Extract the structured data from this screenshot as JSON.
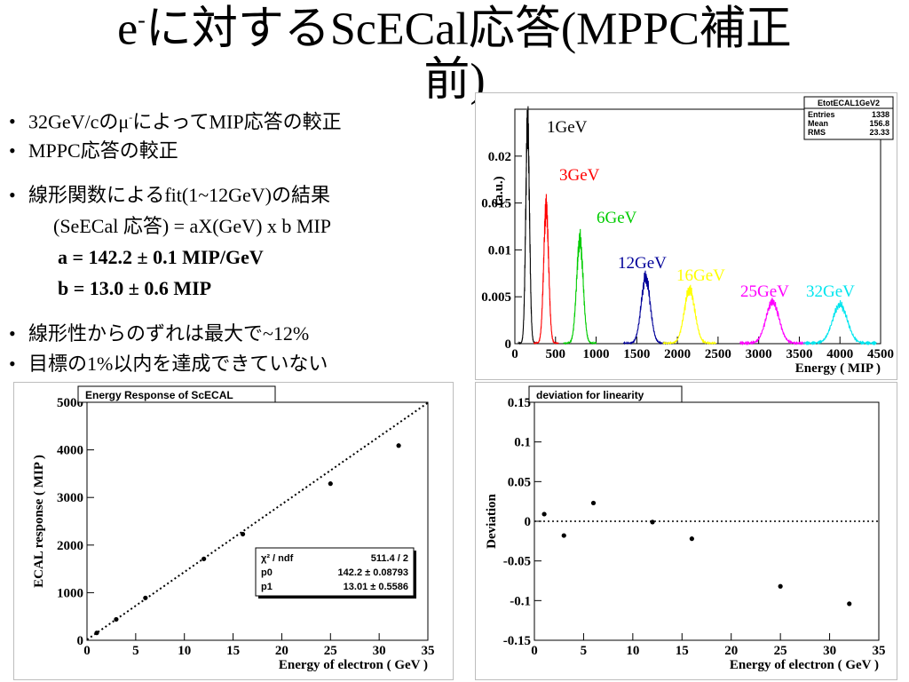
{
  "title": {
    "part1_prefix": "e",
    "part1_sup": "-",
    "part1_rest": "に対するScECal応答(MPPC補正",
    "part2": "前)"
  },
  "bullets": {
    "b1_prefix": "32GeV/cのμ",
    "b1_sup": "-",
    "b1_rest": "によってMIP応答の較正",
    "b2": "MPPC応答の較正",
    "b3": "線形関数によるfit(1~12GeV)の結果",
    "b3_formula": "(SeECal 応答)  =  aX(GeV) x b   MIP",
    "b3_a": "a = 142.2 ± 0.1 MIP/GeV",
    "b3_b": "b = 13.0 ± 0.6 MIP",
    "b4": "線形性からのずれは最大で~12%",
    "b5": "目標の1%以内を達成できていない"
  },
  "chart_data": [
    {
      "type": "line",
      "id": "energy-spectra",
      "stats_box": {
        "title": "EtotECAL1GeV2",
        "rows": [
          {
            "label": "Entries",
            "value": "1338"
          },
          {
            "label": "Mean",
            "value": "156.8"
          },
          {
            "label": "RMS",
            "value": "23.33"
          }
        ]
      },
      "xlabel": "Energy ( MIP )",
      "ylabel": "(a.u.)",
      "xlim": [
        0,
        4500
      ],
      "ylim": [
        0,
        0.025
      ],
      "xticks": [
        0,
        500,
        1000,
        1500,
        2000,
        2500,
        3000,
        3500,
        4000,
        4500
      ],
      "yticks": [
        0,
        0.005,
        0.01,
        0.015,
        0.02
      ],
      "ytick_labels": [
        "0",
        "0.005",
        "0.01",
        "0.015",
        "0.02"
      ],
      "series": [
        {
          "name": "1GeV",
          "color": "#000000",
          "mean": 157,
          "sigma": 23,
          "peak": 0.0235
        },
        {
          "name": "3GeV",
          "color": "#ff0000",
          "mean": 385,
          "sigma": 30,
          "peak": 0.0145
        },
        {
          "name": "6GeV",
          "color": "#00cc00",
          "mean": 800,
          "sigma": 40,
          "peak": 0.011
        },
        {
          "name": "12GeV",
          "color": "#000099",
          "mean": 1610,
          "sigma": 55,
          "peak": 0.007
        },
        {
          "name": "16GeV",
          "color": "#ffff00",
          "mean": 2150,
          "sigma": 65,
          "peak": 0.0057
        },
        {
          "name": "25GeV",
          "color": "#ff00ff",
          "mean": 3170,
          "sigma": 80,
          "peak": 0.0044
        },
        {
          "name": "32GeV",
          "color": "#00e5ee",
          "mean": 4000,
          "sigma": 90,
          "peak": 0.0041
        }
      ]
    },
    {
      "type": "scatter",
      "id": "energy-response",
      "title": "Energy Response of ScECAL",
      "xlabel": "Energy of electron ( GeV )",
      "ylabel": "ECAL response ( MIP )",
      "xlim": [
        0,
        35
      ],
      "ylim": [
        0,
        5000
      ],
      "xticks": [
        0,
        5,
        10,
        15,
        20,
        25,
        30,
        35
      ],
      "yticks": [
        0,
        1000,
        2000,
        3000,
        4000,
        5000
      ],
      "x": [
        1,
        3,
        6,
        12,
        16,
        25,
        32
      ],
      "y": [
        155,
        440,
        890,
        1710,
        2230,
        3290,
        4090
      ],
      "fit": {
        "slope": 142.2,
        "intercept": 13.0
      },
      "fit_box": [
        {
          "label": "χ² / ndf",
          "value": "511.4 / 2"
        },
        {
          "label": "p0",
          "value": "142.2 ± 0.08793"
        },
        {
          "label": "p1",
          "value": "13.01 ± 0.5586"
        }
      ]
    },
    {
      "type": "scatter",
      "id": "deviation",
      "title": "deviation for linearity",
      "xlabel": "Energy of electron ( GeV )",
      "ylabel": "Deviation",
      "xlim": [
        0,
        35
      ],
      "ylim": [
        -0.15,
        0.15
      ],
      "xticks": [
        0,
        5,
        10,
        15,
        20,
        25,
        30,
        35
      ],
      "yticks": [
        -0.15,
        -0.1,
        -0.05,
        0,
        0.05,
        0.1,
        0.15
      ],
      "x": [
        1,
        3,
        6,
        12,
        16,
        25,
        32
      ],
      "y": [
        0.009,
        -0.018,
        0.023,
        -0.001,
        -0.022,
        -0.082,
        -0.104
      ],
      "reference_line": 0
    }
  ]
}
